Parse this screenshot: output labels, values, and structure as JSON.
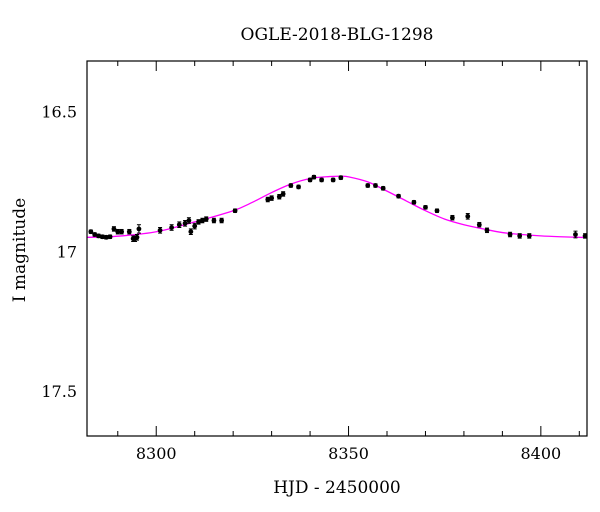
{
  "chart_data": {
    "type": "scatter",
    "title": "OGLE-2018-BLG-1298",
    "xlabel": "HJD - 2450000",
    "ylabel": "I magnitude",
    "xlim": [
      8282,
      8412
    ],
    "ylim": [
      17.66,
      16.32
    ],
    "y_inverted": true,
    "grid": false,
    "x_ticks": [
      {
        "value": 8300,
        "label": "8300"
      },
      {
        "value": 8350,
        "label": "8350"
      },
      {
        "value": 8400,
        "label": "8400"
      }
    ],
    "y_ticks": [
      {
        "value": 16.5,
        "label": "16.5"
      },
      {
        "value": 17,
        "label": "17"
      },
      {
        "value": 17.5,
        "label": "17.5"
      }
    ],
    "x_minor_step": 10,
    "y_minor_step": 0.1,
    "model_color": "#ff00ff",
    "point_color": "#000000",
    "model_curve": {
      "name": "",
      "x": [
        8282,
        8290,
        8300,
        8310,
        8320,
        8325,
        8330,
        8335,
        8340,
        8345,
        8348,
        8350,
        8355,
        8360,
        8365,
        8370,
        8375,
        8380,
        8385,
        8390,
        8395,
        8400,
        8405,
        8412
      ],
      "y": [
        16.95,
        16.946,
        16.93,
        16.895,
        16.855,
        16.825,
        16.79,
        16.76,
        16.74,
        16.733,
        16.732,
        16.734,
        16.752,
        16.785,
        16.82,
        16.855,
        16.885,
        16.905,
        16.92,
        16.933,
        16.94,
        16.945,
        16.948,
        16.951
      ]
    },
    "series": [
      {
        "name": "",
        "x": [
          8283,
          8284,
          8285,
          8286,
          8287,
          8288,
          8289,
          8290,
          8291,
          8293,
          8294,
          8294.5,
          8295,
          8295.5,
          8301,
          8304,
          8306,
          8307.5,
          8308.5,
          8309,
          8310,
          8311,
          8312,
          8313,
          8315,
          8317,
          8320.5,
          8329,
          8330,
          8332,
          8333,
          8335,
          8337,
          8340,
          8341,
          8343,
          8346,
          8348,
          8355,
          8357,
          8359,
          8363,
          8367,
          8370,
          8373,
          8377,
          8381,
          8384,
          8386,
          8392,
          8394.5,
          8397,
          8409,
          8411.5
        ],
        "y": [
          16.93,
          16.94,
          16.945,
          16.948,
          16.95,
          16.948,
          16.92,
          16.93,
          16.93,
          16.93,
          16.955,
          16.955,
          16.95,
          16.92,
          16.925,
          16.915,
          16.905,
          16.9,
          16.89,
          16.93,
          16.91,
          16.895,
          16.89,
          16.885,
          16.89,
          16.89,
          16.855,
          16.815,
          16.81,
          16.805,
          16.795,
          16.765,
          16.77,
          16.745,
          16.735,
          16.745,
          16.745,
          16.737,
          16.765,
          16.765,
          16.775,
          16.803,
          16.825,
          16.843,
          16.855,
          16.88,
          16.875,
          16.905,
          16.925,
          16.94,
          16.945,
          16.945,
          16.94,
          16.945
        ],
        "err": [
          0.006,
          0.006,
          0.006,
          0.006,
          0.006,
          0.006,
          0.008,
          0.008,
          0.008,
          0.008,
          0.01,
          0.01,
          0.01,
          0.015,
          0.01,
          0.01,
          0.01,
          0.01,
          0.01,
          0.01,
          0.01,
          0.008,
          0.008,
          0.008,
          0.008,
          0.008,
          0.006,
          0.008,
          0.008,
          0.008,
          0.008,
          0.006,
          0.006,
          0.006,
          0.006,
          0.006,
          0.006,
          0.006,
          0.006,
          0.006,
          0.006,
          0.006,
          0.006,
          0.006,
          0.006,
          0.008,
          0.01,
          0.008,
          0.008,
          0.008,
          0.008,
          0.008,
          0.012,
          0.008
        ]
      }
    ]
  }
}
